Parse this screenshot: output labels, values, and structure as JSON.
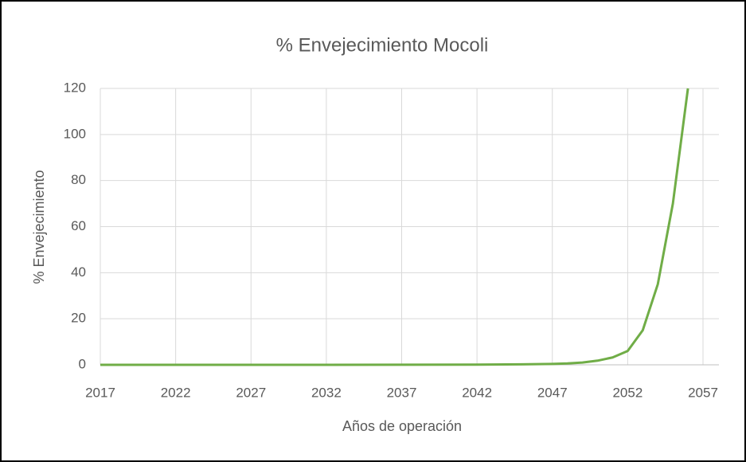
{
  "chart_data": {
    "type": "line",
    "title": "% Envejecimiento Mocoli",
    "x_label": "Años de operación",
    "y_label": "% Envejecimiento",
    "x": [
      2017,
      2022,
      2027,
      2032,
      2037,
      2042,
      2045,
      2047,
      2048,
      2049,
      2050,
      2051,
      2052,
      2053,
      2054,
      2055,
      2055.5,
      2056
    ],
    "series": [
      {
        "name": "% Envejecimiento",
        "color": "#70ad47",
        "values": [
          0,
          0,
          0,
          0,
          0.05,
          0.1,
          0.2,
          0.4,
          0.6,
          1,
          1.8,
          3.2,
          6,
          15,
          35,
          70,
          95,
          120
        ]
      }
    ],
    "xlim": [
      2017,
      2057
    ],
    "xticks": [
      2017,
      2022,
      2027,
      2032,
      2037,
      2042,
      2047,
      2052,
      2057
    ],
    "ylim": [
      0,
      120
    ],
    "yticks": [
      0,
      20,
      40,
      60,
      80,
      100,
      120
    ],
    "grid": true
  }
}
